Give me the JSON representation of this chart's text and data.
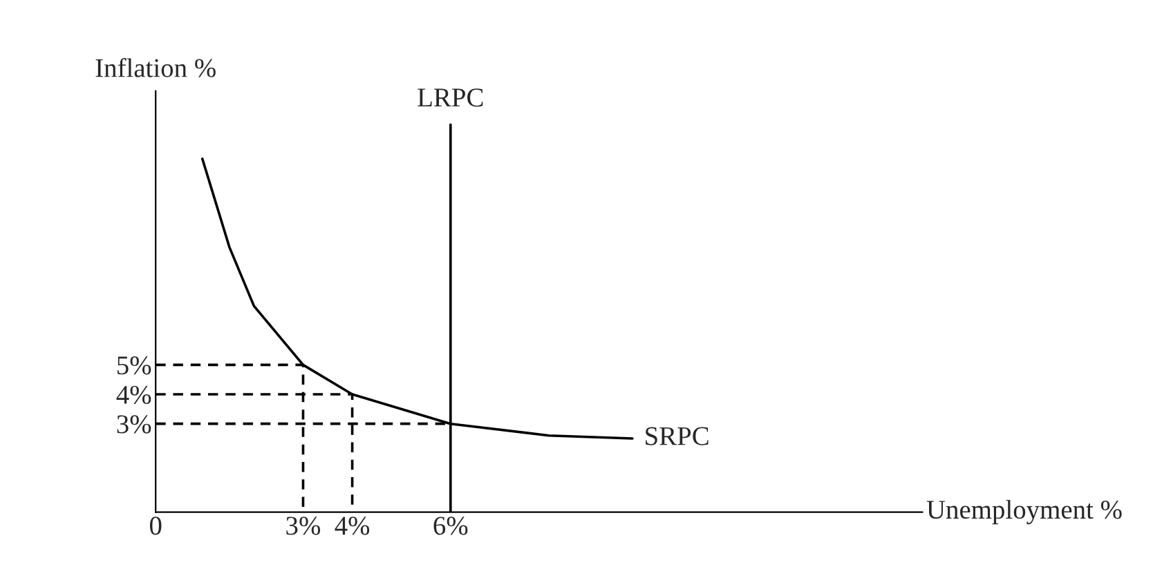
{
  "chart_data": {
    "type": "line",
    "xlabel": "Unemployment %",
    "ylabel": "Inflation %",
    "xlim": [
      0,
      15.6
    ],
    "ylim": [
      0,
      14.3
    ],
    "xticks": [
      {
        "value": 0,
        "label": "0"
      },
      {
        "value": 3,
        "label": "3%"
      },
      {
        "value": 4,
        "label": "4%"
      },
      {
        "value": 6,
        "label": "6%"
      }
    ],
    "yticks": [
      {
        "value": 3,
        "label": "3%"
      },
      {
        "value": 4,
        "label": "4%"
      },
      {
        "value": 5,
        "label": "5%"
      }
    ],
    "series": [
      {
        "name": "SRPC",
        "color": "#000000",
        "line_style": "solid",
        "x": [
          0.95,
          1.5,
          2,
          3,
          4,
          6,
          8,
          9.7
        ],
        "values": [
          12,
          9,
          7,
          5,
          4,
          3,
          2.6,
          2.5
        ]
      },
      {
        "color": "#000000",
        "line_style": "dashed",
        "x": [
          0,
          3,
          3
        ],
        "values": [
          5,
          5,
          0
        ]
      },
      {
        "color": "#000000",
        "line_style": "dashed",
        "x": [
          0,
          4,
          4
        ],
        "values": [
          4,
          4,
          0
        ]
      },
      {
        "color": "#000000",
        "line_style": "dashed",
        "x": [
          0,
          6
        ],
        "values": [
          3,
          3
        ]
      }
    ],
    "ref_lines": [
      {
        "axis": "x",
        "value": 6,
        "label": "LRPC",
        "color": "#000000",
        "line_style": "solid"
      }
    ]
  }
}
